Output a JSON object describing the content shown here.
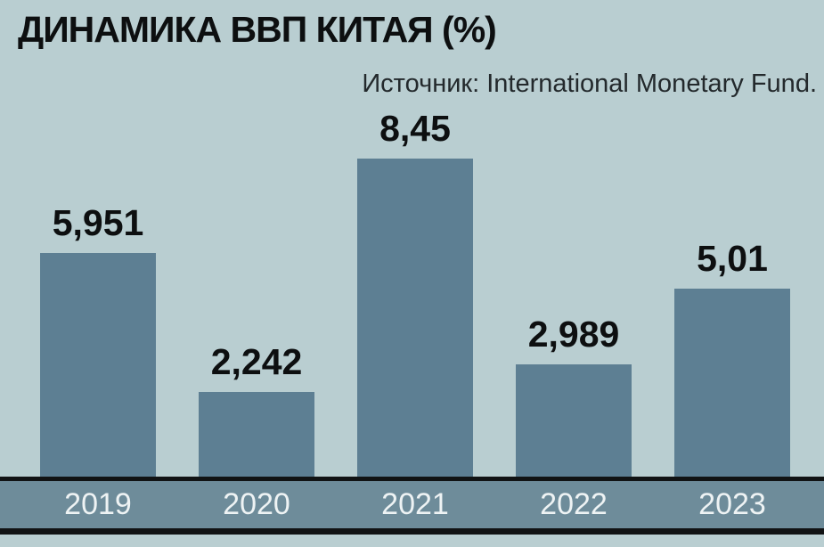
{
  "header": {
    "title": "ДИНАМИКА ВВП КИТАЯ (%)",
    "source": "Источник: International Monetary Fund."
  },
  "colors": {
    "background": "#b9ced1",
    "bar": "#5d7f93",
    "axis_band": "#6e8c9a",
    "axis_line": "#111314",
    "title_text": "#0d0f10",
    "year_text": "#eef3f4"
  },
  "chart_data": {
    "type": "bar",
    "title": "ДИНАМИКА ВВП КИТАЯ (%)",
    "source": "Источник: International Monetary Fund.",
    "categories": [
      "2019",
      "2020",
      "2021",
      "2022",
      "2023"
    ],
    "values": [
      5.951,
      2.242,
      8.45,
      2.989,
      5.01
    ],
    "value_labels": [
      "5,951",
      "2,242",
      "8,45",
      "2,989",
      "5,01"
    ],
    "xlabel": "",
    "ylabel": "",
    "ylim": [
      0,
      9
    ],
    "grid": false,
    "legend": "none"
  }
}
